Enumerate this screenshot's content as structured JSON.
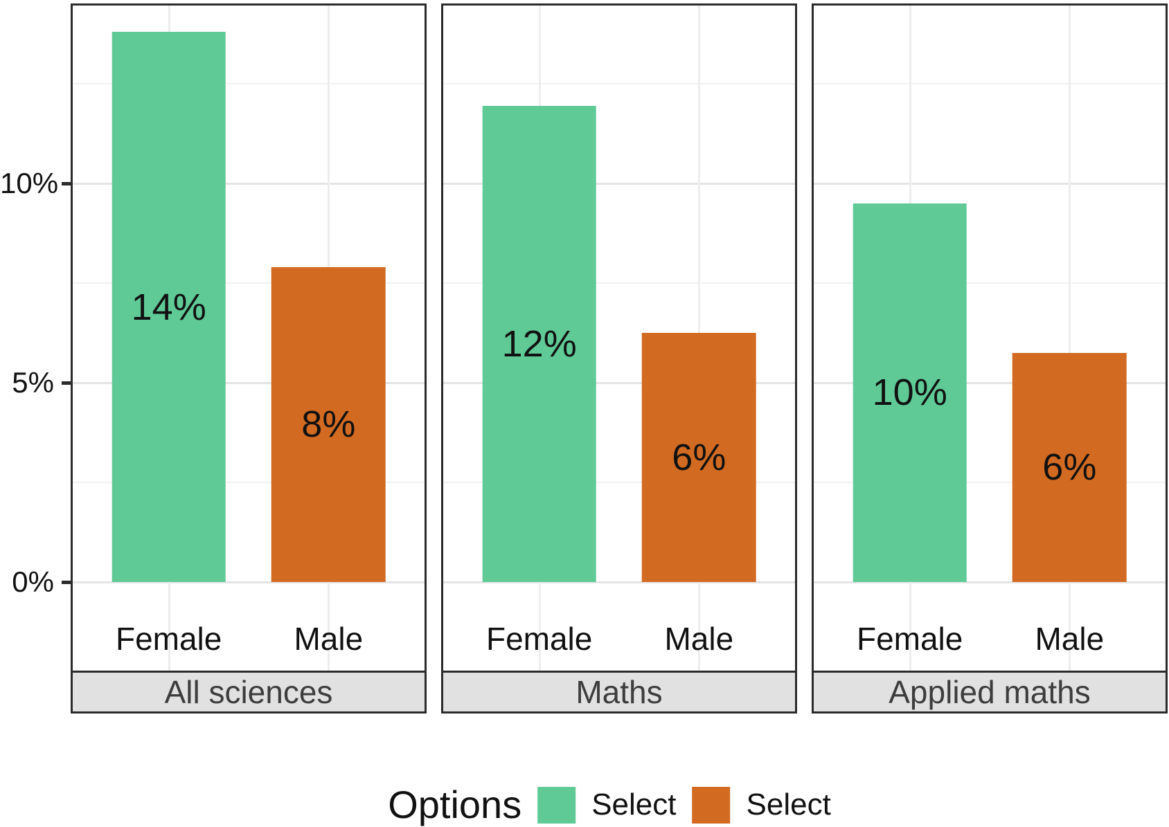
{
  "chart_data": {
    "type": "bar",
    "title": "",
    "categories": [
      "Female",
      "Male"
    ],
    "facets": [
      {
        "label": "All sciences",
        "values": [
          13.8,
          7.9
        ],
        "bar_labels": [
          "14%",
          "8%"
        ]
      },
      {
        "label": "Maths",
        "values": [
          11.95,
          6.25
        ],
        "bar_labels": [
          "12%",
          "6%"
        ]
      },
      {
        "label": "Applied maths",
        "values": [
          9.5,
          5.75
        ],
        "bar_labels": [
          "10%",
          "6%"
        ]
      }
    ],
    "series": [
      {
        "name": "Select",
        "color": "#5fca96"
      },
      {
        "name": "Select",
        "color": "#d26a21"
      }
    ],
    "y_axis": {
      "tick_labels": [
        "0%",
        "5%",
        "10%"
      ],
      "tick_values": [
        0,
        5,
        10
      ],
      "minor_tick_values": [
        2.5,
        7.5,
        12.5
      ],
      "range_pct": [
        -2.3,
        14.5
      ],
      "grid": true
    },
    "legend": {
      "title": "Options",
      "position": "bottom",
      "entries": [
        {
          "label": "Select",
          "color": "#5fca96"
        },
        {
          "label": "Select",
          "color": "#d26a21"
        }
      ]
    }
  }
}
